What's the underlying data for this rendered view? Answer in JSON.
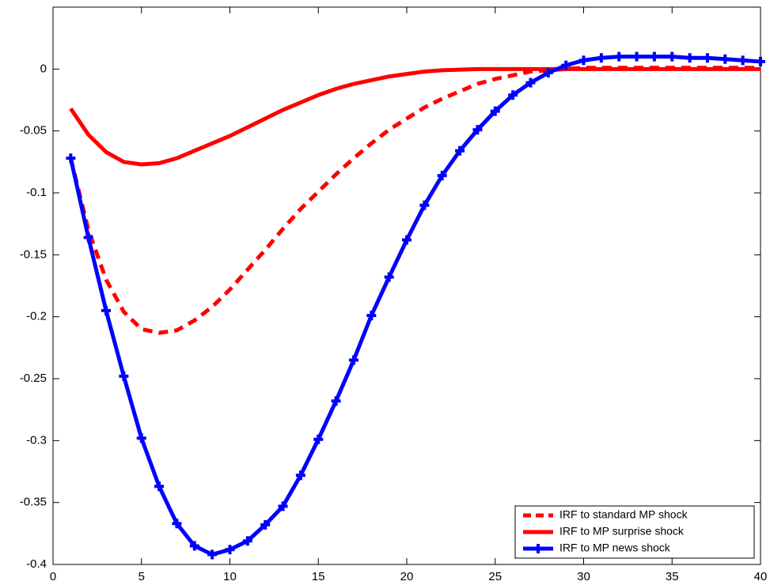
{
  "chart_data": {
    "type": "line",
    "x": [
      1,
      2,
      3,
      4,
      5,
      6,
      7,
      8,
      9,
      10,
      11,
      12,
      13,
      14,
      15,
      16,
      17,
      18,
      19,
      20,
      21,
      22,
      23,
      24,
      25,
      26,
      27,
      28,
      29,
      30,
      31,
      32,
      33,
      34,
      35,
      36,
      37,
      38,
      39,
      40
    ],
    "series": [
      {
        "name": "IRF to standard MP shock",
        "color": "#ff0000",
        "style": "dashed",
        "marker": null,
        "values": [
          -0.072,
          -0.13,
          -0.17,
          -0.196,
          -0.21,
          -0.213,
          -0.211,
          -0.203,
          -0.192,
          -0.178,
          -0.162,
          -0.146,
          -0.129,
          -0.113,
          -0.099,
          -0.085,
          -0.072,
          -0.06,
          -0.049,
          -0.04,
          -0.031,
          -0.024,
          -0.018,
          -0.012,
          -0.008,
          -0.005,
          -0.002,
          -0.001,
          0,
          0.001,
          0.001,
          0.001,
          0.001,
          0.001,
          0.001,
          0.001,
          0.001,
          0.001,
          0.001,
          0.001
        ]
      },
      {
        "name": "IRF to MP surprise shock",
        "color": "#ff0000",
        "style": "solid",
        "marker": null,
        "values": [
          -0.032,
          -0.053,
          -0.067,
          -0.075,
          -0.077,
          -0.076,
          -0.072,
          -0.066,
          -0.06,
          -0.054,
          -0.047,
          -0.04,
          -0.033,
          -0.027,
          -0.021,
          -0.016,
          -0.012,
          -0.009,
          -0.006,
          -0.004,
          -0.002,
          -0.001,
          -0.0005,
          0,
          0,
          0,
          0,
          0,
          0,
          0,
          0,
          0,
          0,
          0,
          0,
          0,
          0,
          0,
          0,
          0
        ]
      },
      {
        "name": "IRF to MP news shock",
        "color": "#0000ff",
        "style": "solid",
        "marker": "plus",
        "values": [
          -0.072,
          -0.136,
          -0.195,
          -0.248,
          -0.298,
          -0.337,
          -0.367,
          -0.385,
          -0.392,
          -0.388,
          -0.381,
          -0.368,
          -0.353,
          -0.328,
          -0.299,
          -0.268,
          -0.235,
          -0.199,
          -0.168,
          -0.138,
          -0.11,
          -0.086,
          -0.066,
          -0.049,
          -0.034,
          -0.021,
          -0.011,
          -0.003,
          0.003,
          0.007,
          0.009,
          0.01,
          0.01,
          0.01,
          0.01,
          0.009,
          0.009,
          0.008,
          0.007,
          0.006
        ]
      }
    ],
    "xlim": [
      0,
      40
    ],
    "xticks": [
      0,
      5,
      10,
      15,
      20,
      25,
      30,
      35,
      40
    ],
    "ylim": [
      -0.4,
      0.05
    ],
    "yticks": [
      -0.4,
      -0.35,
      -0.3,
      -0.25,
      -0.2,
      -0.15,
      -0.1,
      -0.05,
      0
    ],
    "grid": false,
    "legend": "lower right"
  }
}
